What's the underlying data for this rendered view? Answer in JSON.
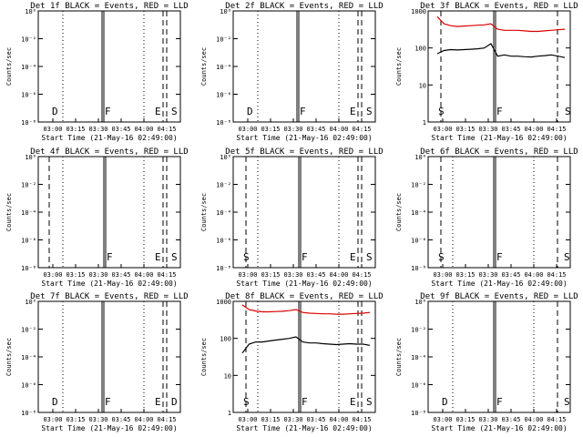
{
  "chart_data": [
    {
      "type": "line",
      "title": "Det 1f BLACK = Events, RED = LLD",
      "xlabel": "Start Time (21-May-16 02:49:00)",
      "ylabel": "Counts/sec",
      "yscale": "log",
      "ylim": [
        1e-08,
        1
      ],
      "yticks": [
        "10⁻⁸",
        "10⁻⁶",
        "10⁻⁴",
        "10⁻²",
        "10⁰"
      ],
      "xticks": [
        "03:00",
        "03:15",
        "03:30",
        "03:45",
        "04:00",
        "04:15"
      ],
      "markers": [
        {
          "label": "D",
          "style": "dashed"
        },
        {
          "label": "F",
          "style": "solid"
        },
        {
          "label": "E",
          "style": "dotted"
        },
        {
          "label": "S",
          "style": "dashed"
        }
      ],
      "series": []
    },
    {
      "type": "line",
      "title": "Det 2f BLACK = Events, RED = LLD",
      "xlabel": "Start Time (21-May-16 02:49:00)",
      "ylabel": "Counts/sec",
      "yscale": "log",
      "ylim": [
        1e-08,
        1
      ],
      "yticks": [
        "10⁻⁸",
        "10⁻⁶",
        "10⁻⁴",
        "10⁻²",
        "10⁰"
      ],
      "xticks": [
        "03:00",
        "03:15",
        "03:30",
        "03:45",
        "04:00",
        "04:15"
      ],
      "markers": [
        {
          "label": "D",
          "style": "dashed"
        },
        {
          "label": "F",
          "style": "solid"
        },
        {
          "label": "E",
          "style": "dotted"
        },
        {
          "label": "S",
          "style": "dashed"
        }
      ],
      "series": []
    },
    {
      "type": "line",
      "title": "Det 3f BLACK = Events, RED = LLD",
      "xlabel": "Start Time (21-May-16 02:49:00)",
      "ylabel": "Counts/sec",
      "yscale": "log",
      "ylim": [
        1,
        1000
      ],
      "yticks": [
        "1",
        "10",
        "100",
        "1000"
      ],
      "xticks": [
        "03:00",
        "03:15",
        "03:30",
        "03:45",
        "04:00",
        "04:15"
      ],
      "markers": [
        {
          "label": "S",
          "style": "dashed"
        },
        {
          "label": "F",
          "style": "solid"
        },
        {
          "label": "S",
          "style": "dashed"
        }
      ],
      "series": [
        {
          "color": "#000000",
          "values": [
            70,
            85,
            90,
            88,
            90,
            92,
            95,
            100,
            130,
            60,
            65,
            60,
            60,
            58,
            57,
            60,
            62,
            65,
            60,
            55
          ]
        },
        {
          "color": "#dd0000",
          "values": [
            700,
            450,
            400,
            380,
            390,
            400,
            410,
            420,
            450,
            320,
            300,
            300,
            300,
            290,
            280,
            280,
            290,
            300,
            310,
            320
          ]
        }
      ]
    },
    {
      "type": "line",
      "title": "Det 4f BLACK = Events, RED = LLD",
      "xlabel": "Start Time (21-May-16 02:49:00)",
      "ylabel": "Counts/sec",
      "yscale": "log",
      "ylim": [
        1e-08,
        1
      ],
      "yticks": [
        "10⁻⁸",
        "10⁻⁶",
        "10⁻⁴",
        "10⁻²",
        "10⁰"
      ],
      "xticks": [
        "03:00",
        "03:15",
        "03:30",
        "03:45",
        "04:00",
        "04:15"
      ],
      "markers": [
        {
          "label": "F",
          "style": "solid"
        },
        {
          "label": "E",
          "style": "dotted"
        },
        {
          "label": "S",
          "style": "dashed"
        }
      ],
      "series": []
    },
    {
      "type": "line",
      "title": "Det 5f BLACK = Events, RED = LLD",
      "xlabel": "Start Time (21-May-16 02:49:00)",
      "ylabel": "Counts/sec",
      "yscale": "log",
      "ylim": [
        1e-08,
        1
      ],
      "yticks": [
        "10⁻⁸",
        "10⁻⁶",
        "10⁻⁴",
        "10⁻²",
        "10⁰"
      ],
      "xticks": [
        "03:00",
        "03:15",
        "03:30",
        "03:45",
        "04:00",
        "04:15"
      ],
      "markers": [
        {
          "label": "S",
          "style": "dashed"
        },
        {
          "label": "F",
          "style": "solid"
        },
        {
          "label": "E",
          "style": "dotted"
        },
        {
          "label": "S",
          "style": "dashed"
        }
      ],
      "series": []
    },
    {
      "type": "line",
      "title": "Det 6f BLACK = Events, RED = LLD",
      "xlabel": "Start Time (21-May-16 02:49:00)",
      "ylabel": "Counts/sec",
      "yscale": "log",
      "ylim": [
        1e-08,
        1
      ],
      "yticks": [
        "10⁻⁸",
        "10⁻⁶",
        "10⁻⁴",
        "10⁻²",
        "10⁰"
      ],
      "xticks": [
        "03:00",
        "03:15",
        "03:30",
        "03:45",
        "04:00",
        "04:15"
      ],
      "markers": [
        {
          "label": "S",
          "style": "dashed"
        },
        {
          "label": "F",
          "style": "solid"
        },
        {
          "label": "S",
          "style": "dashed"
        }
      ],
      "series": []
    },
    {
      "type": "line",
      "title": "Det 7f BLACK = Events, RED = LLD",
      "xlabel": "Start Time (21-May-16 02:49:00)",
      "ylabel": "Counts/sec",
      "yscale": "log",
      "ylim": [
        1e-08,
        1
      ],
      "yticks": [
        "10⁻⁸",
        "10⁻⁶",
        "10⁻⁴",
        "10⁻²",
        "10⁰"
      ],
      "xticks": [
        "03:00",
        "03:15",
        "03:30",
        "03:45",
        "04:00",
        "04:15"
      ],
      "markers": [
        {
          "label": "D",
          "style": "dashed"
        },
        {
          "label": "F",
          "style": "solid"
        },
        {
          "label": "E",
          "style": "dotted"
        },
        {
          "label": "D",
          "style": "dashed"
        }
      ],
      "series": []
    },
    {
      "type": "line",
      "title": "Det 8f BLACK = Events, RED = LLD",
      "xlabel": "Start Time (21-May-16 02:49:00)",
      "ylabel": "Counts/sec",
      "yscale": "log",
      "ylim": [
        1,
        1000
      ],
      "yticks": [
        "1",
        "10",
        "100",
        "1000"
      ],
      "xticks": [
        "03:00",
        "03:15",
        "03:30",
        "03:45",
        "04:00",
        "04:15"
      ],
      "markers": [
        {
          "label": "S",
          "style": "dashed"
        },
        {
          "label": "F",
          "style": "solid"
        },
        {
          "label": "E",
          "style": "dotted"
        },
        {
          "label": "S",
          "style": "dashed"
        }
      ],
      "series": [
        {
          "color": "#000000",
          "values": [
            40,
            70,
            80,
            80,
            85,
            90,
            95,
            100,
            110,
            80,
            75,
            75,
            72,
            70,
            68,
            70,
            72,
            70,
            70,
            65
          ]
        },
        {
          "color": "#dd0000",
          "values": [
            800,
            600,
            550,
            520,
            520,
            530,
            540,
            560,
            600,
            500,
            480,
            470,
            460,
            460,
            450,
            450,
            460,
            470,
            480,
            500
          ]
        }
      ]
    },
    {
      "type": "line",
      "title": "Det 9f BLACK = Events, RED = LLD",
      "xlabel": "Start Time (21-May-16 02:49:00)",
      "ylabel": "Counts/sec",
      "yscale": "log",
      "ylim": [
        1e-08,
        1
      ],
      "yticks": [
        "10⁻⁸",
        "10⁻⁶",
        "10⁻⁴",
        "10⁻²",
        "10⁰"
      ],
      "xticks": [
        "03:00",
        "03:15",
        "03:30",
        "03:45",
        "04:00",
        "04:15"
      ],
      "markers": [
        {
          "label": "D",
          "style": "dashed"
        },
        {
          "label": "F",
          "style": "solid"
        },
        {
          "label": "S",
          "style": "dashed"
        }
      ],
      "series": []
    }
  ]
}
